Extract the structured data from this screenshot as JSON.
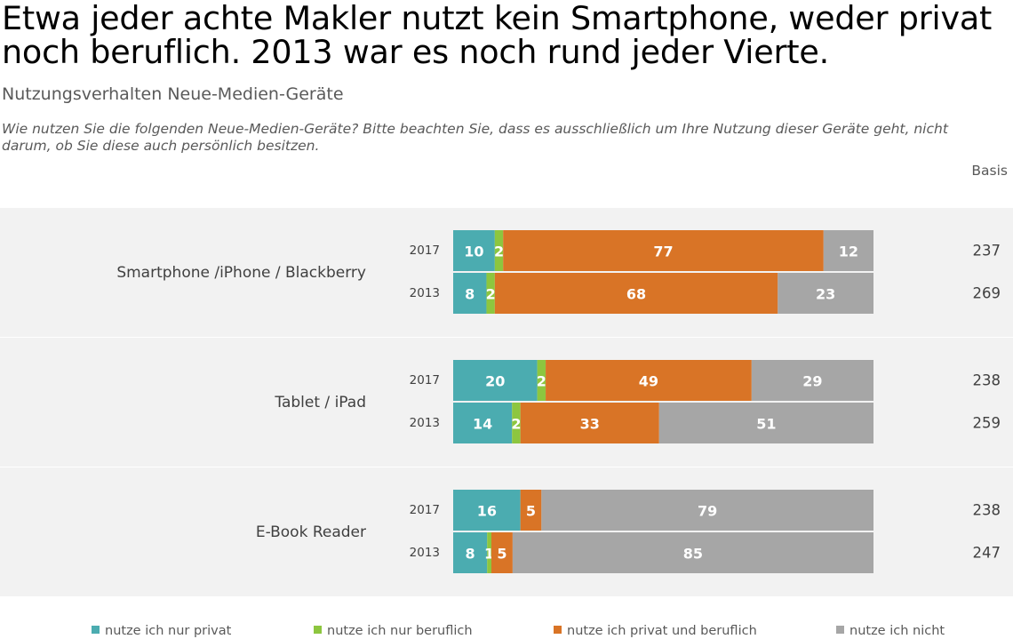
{
  "headline": "Etwa jeder achte Makler nutzt kein Smartphone, weder privat noch beruflich. 2013 war es noch rund jeder Vierte.",
  "subtitle": "Nutzungsverhalten Neue-Medien-Geräte",
  "question": "Wie nutzen Sie die folgenden Neue-Medien-Geräte? Bitte beachten Sie, dass es ausschließlich um Ihre Nutzung dieser Geräte geht, nicht darum, ob Sie diese auch persönlich besitzen.",
  "basis_label": "Basis",
  "colors": {
    "nur_privat": "#4bacb0",
    "nur_beruflich": "#8dc63f",
    "privat_und_beruflich": "#d97426",
    "nicht": "#a6a6a6",
    "band": "#f2f2f2"
  },
  "chart_data": {
    "type": "bar",
    "orientation": "horizontal",
    "stacked": true,
    "percent_stacked": true,
    "series_names": [
      "nutze ich nur privat",
      "nutze ich nur beruflich",
      "nutze ich privat und beruflich",
      "nutze ich nicht"
    ],
    "groups": [
      {
        "label": "Smartphone /iPhone / Blackberry",
        "rows": [
          {
            "year": "2017",
            "values": [
              10,
              2,
              77,
              12
            ],
            "basis": "237"
          },
          {
            "year": "2013",
            "values": [
              8,
              2,
              68,
              23
            ],
            "basis": "269"
          }
        ]
      },
      {
        "label": "Tablet / iPad",
        "rows": [
          {
            "year": "2017",
            "values": [
              20,
              2,
              49,
              29
            ],
            "basis": "238"
          },
          {
            "year": "2013",
            "values": [
              14,
              2,
              33,
              51
            ],
            "basis": "259"
          }
        ]
      },
      {
        "label": "E-Book Reader",
        "rows": [
          {
            "year": "2017",
            "values": [
              16,
              0,
              5,
              79
            ],
            "basis": "238"
          },
          {
            "year": "2013",
            "values": [
              8,
              1,
              5,
              85
            ],
            "basis": "247"
          }
        ]
      }
    ],
    "legend": [
      {
        "label": "nutze ich nur privat",
        "color": "#4bacb0"
      },
      {
        "label": "nutze ich nur beruflich",
        "color": "#8dc63f"
      },
      {
        "label": "nutze ich privat und beruflich",
        "color": "#d97426"
      },
      {
        "label": "nutze ich nicht",
        "color": "#a6a6a6"
      }
    ],
    "legend_position": "bottom"
  }
}
